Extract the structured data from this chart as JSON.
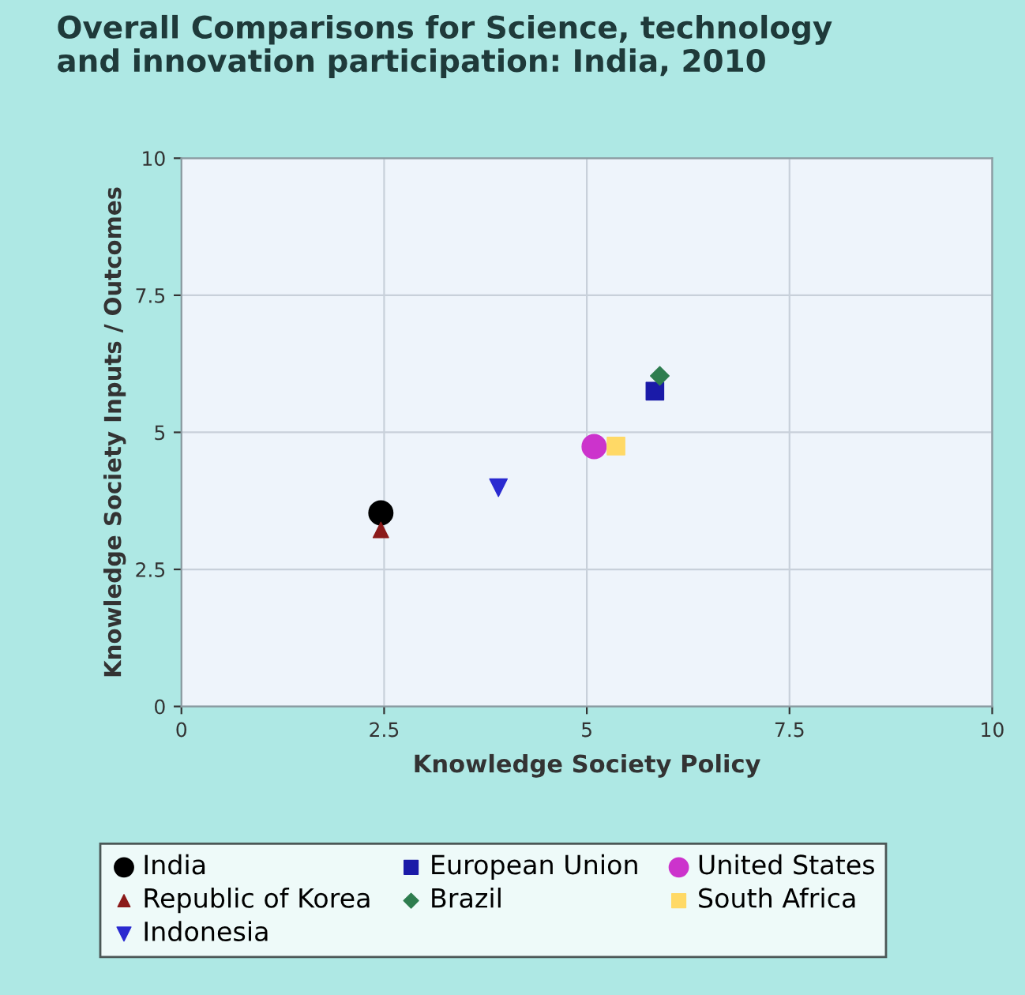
{
  "chart_data": {
    "type": "scatter",
    "title": "Overall Comparisons for Science, technology\nand innovation participation: India, 2010",
    "xlabel": "Knowledge Society Policy",
    "ylabel": "Knowledge Society Inputs / Outcomes",
    "xlim": [
      0,
      10
    ],
    "ylim": [
      0,
      10
    ],
    "xticks": [
      0,
      2.5,
      5,
      7.5,
      10
    ],
    "yticks": [
      0,
      2.5,
      5,
      7.5,
      10
    ],
    "grid": true,
    "legend": "bottom",
    "series": [
      {
        "name": "India",
        "color": "#000000",
        "marker": "circle",
        "x": [
          2.46
        ],
        "values": [
          3.53
        ]
      },
      {
        "name": "European Union",
        "color": "#1a1aa8",
        "marker": "square",
        "x": [
          5.84
        ],
        "values": [
          5.75
        ]
      },
      {
        "name": "United States",
        "color": "#cc33cc",
        "marker": "circle",
        "x": [
          5.09
        ],
        "values": [
          4.74
        ]
      },
      {
        "name": "Republic of Korea",
        "color": "#8b1a1a",
        "marker": "triangle",
        "x": [
          2.46
        ],
        "values": [
          3.22
        ]
      },
      {
        "name": "Brazil",
        "color": "#2e7d4f",
        "marker": "diamond",
        "x": [
          5.9
        ],
        "values": [
          6.03
        ]
      },
      {
        "name": "South Africa",
        "color": "#ffd966",
        "marker": "square",
        "x": [
          5.36
        ],
        "values": [
          4.75
        ]
      },
      {
        "name": "Indonesia",
        "color": "#2a2ad0",
        "marker": "triangle_down",
        "x": [
          3.91
        ],
        "values": [
          3.99
        ]
      }
    ]
  }
}
